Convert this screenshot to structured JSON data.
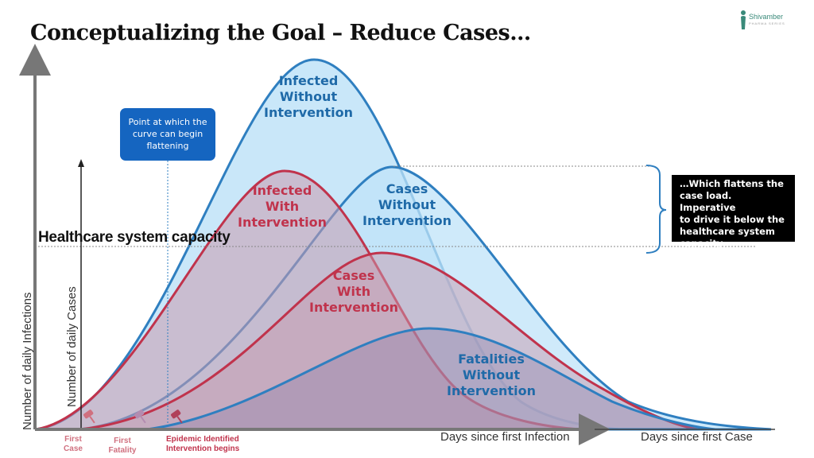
{
  "title": "Conceptualizing the Goal – Reduce Cases…",
  "logo": {
    "name": "Shivamber",
    "tagline": "PHARMA SERIES"
  },
  "curves": {
    "infected_without": [
      "Infected",
      "Without",
      "Intervention"
    ],
    "infected_with": [
      "Infected",
      "With",
      "Intervention"
    ],
    "cases_without": [
      "Cases",
      "Without",
      "Intervention"
    ],
    "cases_with": [
      "Cases",
      "With",
      "Intervention"
    ],
    "fatalities_without": [
      "Fatalities",
      "Without",
      "Intervention"
    ]
  },
  "capacity_label": "Healthcare system capacity",
  "callout_flattening": [
    "Point at which the",
    "curve can begin",
    "flattening"
  ],
  "callout_flattens": [
    "…Which flattens the",
    "case load. Imperative",
    "to drive it below the",
    "healthcare system",
    "capacity…"
  ],
  "axes": {
    "y_outer": "Number of daily Infections",
    "y_inner": "Number of daily Cases",
    "x_infection": "Days since first Infection",
    "x_case": "Days since first Case"
  },
  "markers": {
    "first_case": [
      "First",
      "Case"
    ],
    "first_fatality": [
      "First",
      "Fatality"
    ],
    "epidemic": [
      "Epidemic Identified",
      "Intervention begins"
    ]
  },
  "colors": {
    "blue_line": "#2f7fc0",
    "blue_fill": "#bfe3f8",
    "red_line": "#c0334c",
    "red_fill": "#c89aae",
    "callout_blue": "#1565c0"
  }
}
